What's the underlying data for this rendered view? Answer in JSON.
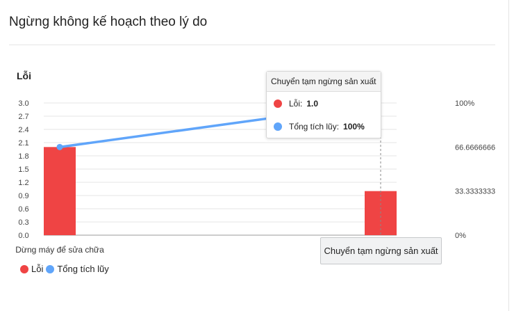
{
  "card": {
    "title": "Ngừng không kế hoạch theo lý do"
  },
  "chart_data": {
    "type": "bar",
    "categories": [
      "Dừng máy để sửa chữa",
      "Chuyển tạm ngừng sản xuất"
    ],
    "series": [
      {
        "name": "Lỗi",
        "type": "bar",
        "axis": "left",
        "values": [
          2.0,
          1.0
        ],
        "color": "#ef4444"
      },
      {
        "name": "Tổng tích lũy",
        "type": "line",
        "axis": "right",
        "values": [
          66.6666666,
          100
        ],
        "color": "#60a5fa"
      }
    ],
    "ylabel": "Lỗi",
    "ylim": [
      0,
      3
    ],
    "y_ticks": [
      "0.0",
      "0.3",
      "0.6",
      "0.9",
      "1.2",
      "1.5",
      "1.8",
      "2.1",
      "2.4",
      "2.7",
      "3.0"
    ],
    "y2lim": [
      0,
      100
    ],
    "y2_ticks": [
      "0%",
      "33.3333333",
      "66.6666666",
      "100%"
    ],
    "legend_position": "bottom-left",
    "grid": true
  },
  "tooltip": {
    "title": "Chuyển tạm ngừng sản xuất",
    "rows": [
      {
        "label": "Lỗi:",
        "value": "1.0",
        "color": "#ef4444"
      },
      {
        "label": "Tổng tích lũy:",
        "value": "100%",
        "color": "#60a5fa"
      }
    ]
  },
  "axis_tooltip": "Chuyển tạm ngừng sản xuất"
}
